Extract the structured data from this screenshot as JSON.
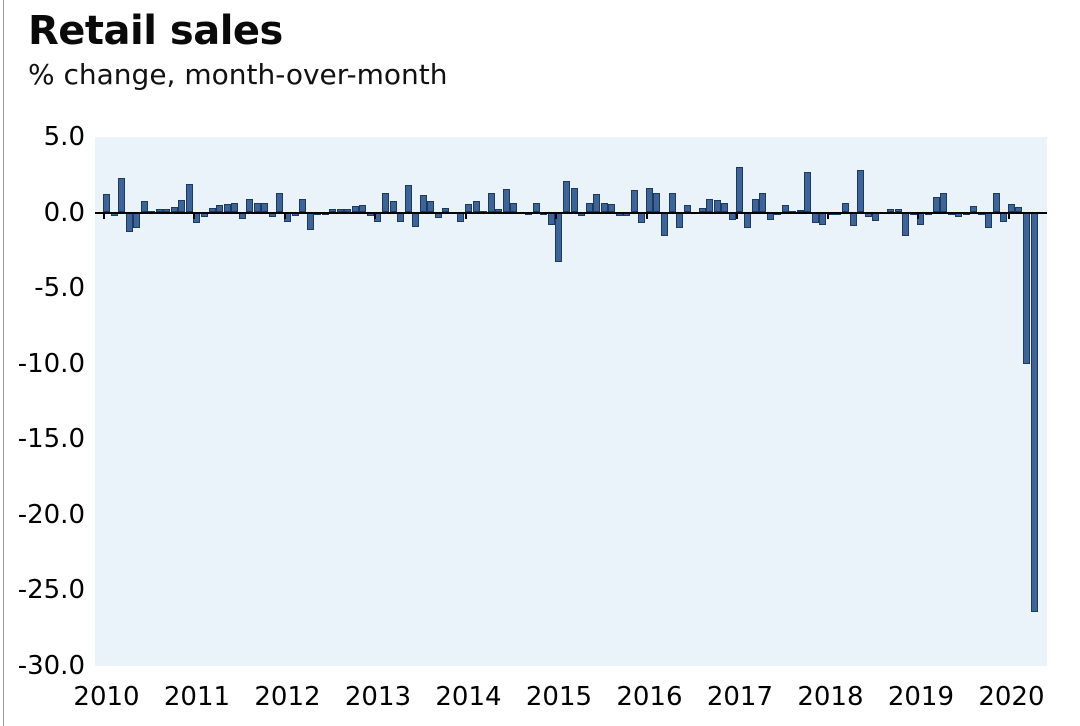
{
  "page": {
    "title": "Retail sales",
    "subtitle": "% change, month-over-month"
  },
  "colors": {
    "bar_fill": "#3d6397",
    "bar_border": "#1b3a5e",
    "plot_bg": "#eaf2fa",
    "axis": "#000000",
    "text": "#000000"
  },
  "chart_data": {
    "type": "bar",
    "title": "Retail sales",
    "subtitle": "% change, month-over-month",
    "ylabel": "% change, month-over-month",
    "frequency": "monthly",
    "start_month": "2010-01",
    "end_month": "2020-04",
    "ylim": [
      -30,
      5
    ],
    "grid": false,
    "legend": "none",
    "y_tick_values": [
      5,
      0,
      -5,
      -10,
      -15,
      -20,
      -25,
      -30
    ],
    "y_tick_labels": [
      "5.0",
      "0.0",
      "-5.0",
      "-10.0",
      "-15.0",
      "-20.0",
      "-25.0",
      "-30.0"
    ],
    "x_tick_labels": [
      "2010",
      "2011",
      "2012",
      "2013",
      "2014",
      "2015",
      "2016",
      "2017",
      "2018",
      "2019",
      "2020"
    ],
    "values": [
      1.2,
      -0.2,
      2.3,
      -1.3,
      -1.0,
      0.75,
      0.1,
      0.2,
      0.2,
      0.35,
      0.85,
      1.9,
      -0.7,
      -0.3,
      0.3,
      0.5,
      0.55,
      0.65,
      -0.4,
      0.9,
      0.65,
      0.65,
      -0.3,
      1.3,
      -0.65,
      -0.2,
      0.9,
      -1.15,
      -0.15,
      -0.1,
      0.2,
      0.2,
      0.25,
      0.4,
      0.5,
      -0.2,
      -0.6,
      1.3,
      0.75,
      -0.65,
      1.8,
      -0.95,
      1.15,
      0.75,
      -0.35,
      0.3,
      0.05,
      -0.6,
      0.55,
      0.75,
      0.1,
      1.3,
      0.2,
      1.55,
      0.6,
      0.05,
      -0.15,
      0.6,
      -0.1,
      -0.8,
      -3.3,
      2.1,
      1.6,
      -0.2,
      0.65,
      1.25,
      0.65,
      0.55,
      -0.2,
      -0.25,
      1.5,
      -0.7,
      1.6,
      1.3,
      -1.55,
      1.3,
      -1.05,
      0.5,
      0.05,
      0.3,
      0.9,
      0.8,
      0.6,
      -0.5,
      3.0,
      -1.05,
      0.9,
      1.3,
      -0.5,
      -0.1,
      0.5,
      0.1,
      0.15,
      2.7,
      -0.7,
      -0.85,
      -0.15,
      -0.1,
      0.65,
      -0.9,
      2.8,
      -0.3,
      -0.55,
      0.05,
      0.2,
      0.25,
      -1.55,
      -0.1,
      -0.8,
      -0.15,
      1.0,
      1.3,
      -0.1,
      -0.3,
      -0.1,
      0.4,
      -0.1,
      -1.0,
      1.3,
      -0.6,
      0.55,
      0.35,
      -10.0,
      -26.4
    ]
  }
}
